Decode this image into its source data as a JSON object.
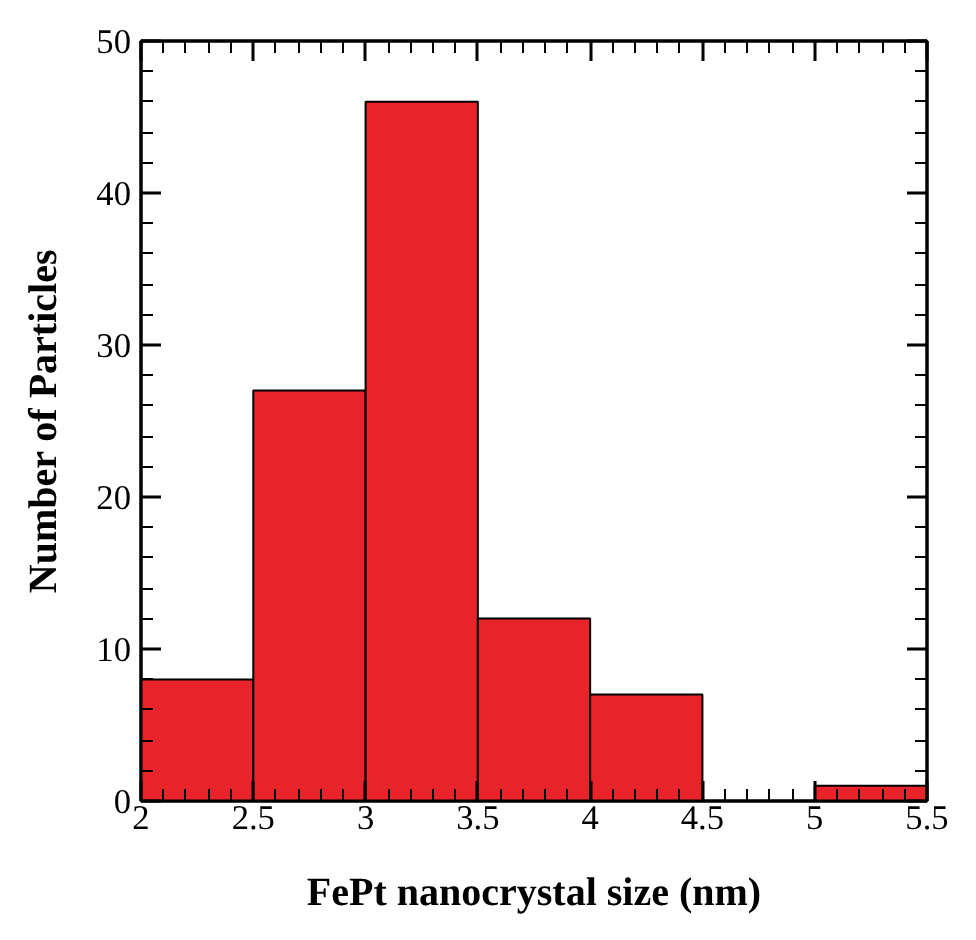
{
  "chart_data": {
    "type": "histogram",
    "xlabel": "FePt nanocrystal size (nm)",
    "ylabel": "Number of Particles",
    "bins": [
      2,
      2.5,
      3,
      3.5,
      4,
      4.5,
      5,
      5.5
    ],
    "values": [
      8,
      27,
      46,
      12,
      7,
      0,
      1
    ],
    "color": "#e8232a",
    "xlim": [
      2,
      5.5
    ],
    "ylim": [
      0,
      50
    ],
    "xticks": [
      2,
      2.5,
      3,
      3.5,
      4,
      4.5,
      5,
      5.5
    ],
    "yticks": [
      0,
      10,
      20,
      30,
      40,
      50
    ],
    "grid": false
  }
}
